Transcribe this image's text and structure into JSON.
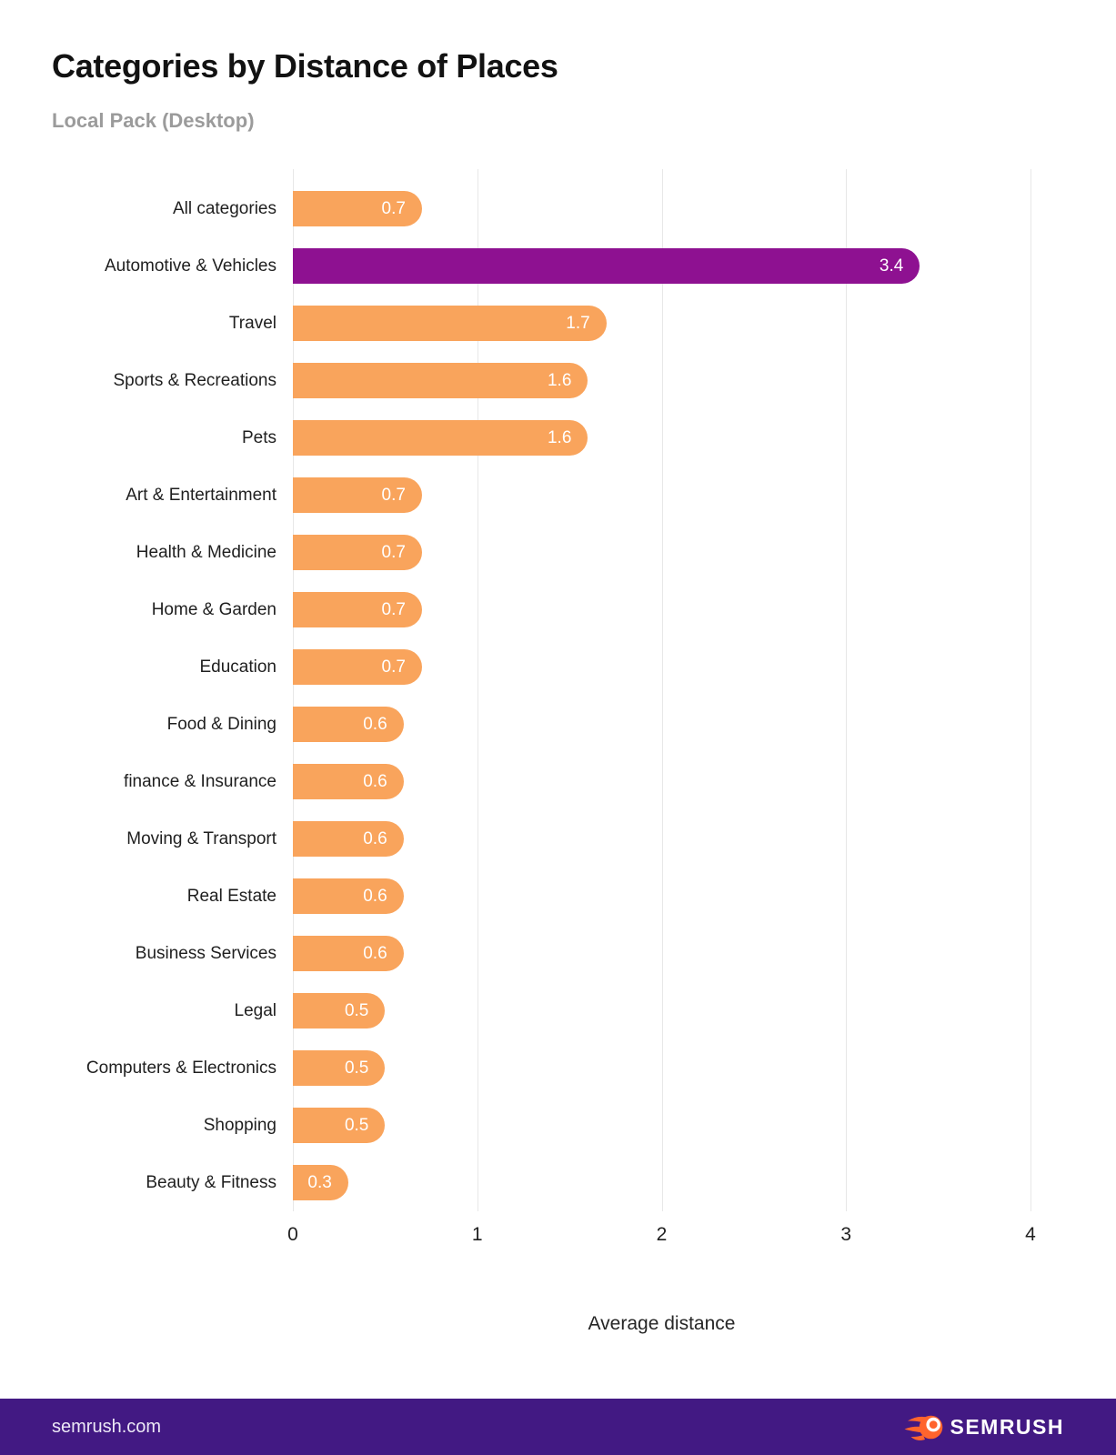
{
  "header": {
    "title": "Categories by Distance of Places",
    "subtitle": "Local Pack (Desktop)"
  },
  "chart_data": {
    "type": "bar",
    "orientation": "horizontal",
    "title": "Categories by Distance of Places",
    "subtitle": "Local Pack (Desktop)",
    "categories": [
      "All categories",
      "Automotive & Vehicles",
      "Travel",
      "Sports & Recreations",
      "Pets",
      "Art & Entertainment",
      "Health & Medicine",
      "Home & Garden",
      "Education",
      "Food & Dining",
      "finance & Insurance",
      "Moving & Transport",
      "Real Estate",
      "Business Services",
      "Legal",
      "Computers & Electronics",
      "Shopping",
      "Beauty & Fitness"
    ],
    "values": [
      0.7,
      3.4,
      1.7,
      1.6,
      1.6,
      0.7,
      0.7,
      0.7,
      0.7,
      0.6,
      0.6,
      0.6,
      0.6,
      0.6,
      0.5,
      0.5,
      0.5,
      0.3
    ],
    "highlighted_category": "Automotive & Vehicles",
    "highlight_index": 1,
    "xlabel": "Average distance",
    "xlim": [
      0,
      4
    ],
    "xticks": [
      0,
      1,
      2,
      3,
      4
    ],
    "grid": true,
    "colors": {
      "bar": "#F9A45C",
      "highlight": "#8E1191",
      "value_label": "#FFFFFF",
      "gridline": "#E7E7E7"
    }
  },
  "footer": {
    "site": "semrush.com",
    "brand": "SEMRUSH",
    "background": "#421983",
    "logo_color": "#FF642D"
  }
}
